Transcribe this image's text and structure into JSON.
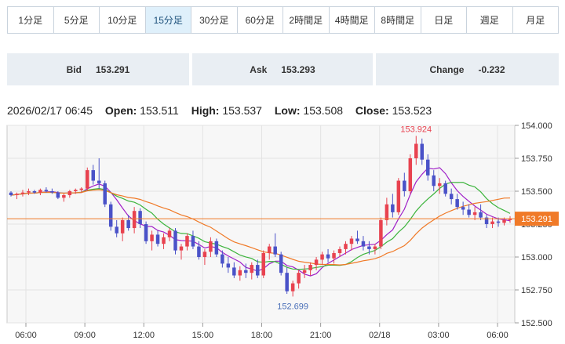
{
  "tabs": [
    {
      "label": "1分足",
      "active": false
    },
    {
      "label": "5分足",
      "active": false
    },
    {
      "label": "10分足",
      "active": false
    },
    {
      "label": "15分足",
      "active": true
    },
    {
      "label": "30分足",
      "active": false
    },
    {
      "label": "60分足",
      "active": false
    },
    {
      "label": "2時間足",
      "active": false
    },
    {
      "label": "4時間足",
      "active": false
    },
    {
      "label": "8時間足",
      "active": false
    },
    {
      "label": "日足",
      "active": false
    },
    {
      "label": "週足",
      "active": false
    },
    {
      "label": "月足",
      "active": false
    }
  ],
  "quotes": {
    "bid_label": "Bid",
    "bid_value": "153.291",
    "ask_label": "Ask",
    "ask_value": "153.293",
    "change_label": "Change",
    "change_value": "-0.232"
  },
  "ohlc": {
    "datetime": "2026/02/17 06:45",
    "open_label": "Open:",
    "open_value": "153.511",
    "high_label": "High:",
    "high_value": "153.537",
    "low_label": "Low:",
    "low_value": "153.508",
    "close_label": "Close:",
    "close_value": "153.523"
  },
  "chart_data": {
    "type": "candlestick",
    "ylim": [
      152.5,
      154.0
    ],
    "y_ticks": [
      "154.000",
      "153.750",
      "153.500",
      "153.250",
      "153.000",
      "152.750",
      "152.500"
    ],
    "x_tick_labels": [
      "06:00",
      "09:00",
      "12:00",
      "15:00",
      "18:00",
      "21:00",
      "02/18",
      "03:00",
      "06:00"
    ],
    "current_price": "153.291",
    "max_label": "153.924",
    "min_label": "152.699",
    "colors": {
      "up": "#e8424f",
      "down": "#4a52c8",
      "ma_short": "#a020c8",
      "ma_mid": "#3cb43c",
      "ma_long": "#f07a28",
      "price_line": "#f07a28",
      "grid": "#e3e3e3",
      "plot_bg": "#f7f7f7"
    },
    "candles": [
      [
        153.49,
        153.5,
        153.46,
        153.47
      ],
      [
        153.47,
        153.49,
        153.44,
        153.48
      ],
      [
        153.48,
        153.51,
        153.46,
        153.49
      ],
      [
        153.49,
        153.52,
        153.47,
        153.5
      ],
      [
        153.5,
        153.51,
        153.48,
        153.49
      ],
      [
        153.49,
        153.52,
        153.47,
        153.51
      ],
      [
        153.51,
        153.53,
        153.49,
        153.5
      ],
      [
        153.5,
        153.52,
        153.48,
        153.49
      ],
      [
        153.49,
        153.5,
        153.44,
        153.45
      ],
      [
        153.45,
        153.48,
        153.42,
        153.47
      ],
      [
        153.47,
        153.51,
        153.45,
        153.5
      ],
      [
        153.5,
        153.52,
        153.48,
        153.51
      ],
      [
        153.51,
        153.53,
        153.49,
        153.52
      ],
      [
        153.52,
        153.68,
        153.5,
        153.66
      ],
      [
        153.66,
        153.7,
        153.55,
        153.58
      ],
      [
        153.58,
        153.75,
        153.52,
        153.56
      ],
      [
        153.56,
        153.58,
        153.38,
        153.4
      ],
      [
        153.4,
        153.42,
        153.2,
        153.23
      ],
      [
        153.23,
        153.28,
        153.15,
        153.18
      ],
      [
        153.18,
        153.3,
        153.12,
        153.28
      ],
      [
        153.28,
        153.32,
        153.2,
        153.22
      ],
      [
        153.22,
        153.38,
        153.18,
        153.35
      ],
      [
        153.35,
        153.37,
        153.22,
        153.25
      ],
      [
        153.25,
        153.27,
        153.1,
        153.12
      ],
      [
        153.12,
        153.2,
        153.05,
        153.17
      ],
      [
        153.17,
        153.2,
        153.08,
        153.1
      ],
      [
        153.1,
        153.18,
        153.06,
        153.15
      ],
      [
        153.15,
        153.22,
        153.12,
        153.2
      ],
      [
        153.2,
        153.22,
        153.02,
        153.05
      ],
      [
        153.05,
        153.1,
        152.98,
        153.08
      ],
      [
        153.08,
        153.18,
        153.05,
        153.16
      ],
      [
        153.16,
        153.2,
        153.06,
        153.08
      ],
      [
        153.08,
        153.12,
        152.98,
        153.0
      ],
      [
        153.0,
        153.06,
        152.94,
        153.04
      ],
      [
        153.04,
        153.15,
        153.0,
        153.12
      ],
      [
        153.12,
        153.14,
        153.0,
        153.02
      ],
      [
        153.02,
        153.05,
        152.92,
        152.95
      ],
      [
        152.95,
        153.0,
        152.88,
        152.92
      ],
      [
        152.92,
        152.96,
        152.84,
        152.86
      ],
      [
        152.86,
        152.93,
        152.82,
        152.9
      ],
      [
        152.9,
        152.95,
        152.84,
        152.88
      ],
      [
        152.88,
        152.96,
        152.83,
        152.94
      ],
      [
        152.94,
        152.98,
        152.84,
        152.86
      ],
      [
        152.86,
        153.05,
        152.84,
        153.03
      ],
      [
        153.03,
        153.1,
        152.98,
        153.08
      ],
      [
        153.08,
        153.18,
        153.0,
        153.02
      ],
      [
        153.02,
        153.04,
        152.86,
        152.88
      ],
      [
        152.88,
        152.92,
        152.72,
        152.74
      ],
      [
        152.74,
        152.82,
        152.7,
        152.8
      ],
      [
        152.8,
        152.9,
        152.76,
        152.88
      ],
      [
        152.88,
        152.94,
        152.84,
        152.9
      ],
      [
        152.9,
        152.96,
        152.86,
        152.94
      ],
      [
        152.94,
        153.0,
        152.9,
        152.98
      ],
      [
        152.98,
        153.04,
        152.94,
        153.02
      ],
      [
        153.02,
        153.06,
        152.96,
        152.99
      ],
      [
        152.99,
        153.05,
        152.95,
        153.03
      ],
      [
        153.03,
        153.08,
        153.0,
        153.06
      ],
      [
        153.06,
        153.12,
        153.02,
        153.1
      ],
      [
        153.1,
        153.16,
        153.05,
        153.14
      ],
      [
        153.14,
        153.2,
        153.1,
        153.12
      ],
      [
        153.12,
        153.16,
        153.05,
        153.08
      ],
      [
        153.08,
        153.12,
        153.02,
        153.06
      ],
      [
        153.06,
        153.1,
        153.02,
        153.08
      ],
      [
        153.08,
        153.3,
        153.06,
        153.28
      ],
      [
        153.28,
        153.45,
        153.24,
        153.4
      ],
      [
        153.4,
        153.48,
        153.3,
        153.34
      ],
      [
        153.34,
        153.6,
        153.32,
        153.58
      ],
      [
        153.58,
        153.64,
        153.46,
        153.5
      ],
      [
        153.5,
        153.78,
        153.48,
        153.75
      ],
      [
        153.75,
        153.92,
        153.7,
        153.86
      ],
      [
        153.86,
        153.9,
        153.7,
        153.74
      ],
      [
        153.74,
        153.78,
        153.58,
        153.62
      ],
      [
        153.62,
        153.66,
        153.5,
        153.54
      ],
      [
        153.54,
        153.6,
        153.48,
        153.56
      ],
      [
        153.56,
        153.58,
        153.46,
        153.48
      ],
      [
        153.48,
        153.52,
        153.4,
        153.44
      ],
      [
        153.44,
        153.48,
        153.36,
        153.38
      ],
      [
        153.38,
        153.42,
        153.32,
        153.36
      ],
      [
        153.36,
        153.4,
        153.3,
        153.32
      ],
      [
        153.32,
        153.38,
        153.28,
        153.34
      ],
      [
        153.34,
        153.4,
        153.28,
        153.3
      ],
      [
        153.3,
        153.32,
        153.22,
        153.25
      ],
      [
        153.25,
        153.3,
        153.22,
        153.27
      ],
      [
        153.27,
        153.3,
        153.23,
        153.26
      ],
      [
        153.26,
        153.3,
        153.24,
        153.28
      ],
      [
        153.28,
        153.31,
        153.26,
        153.29
      ]
    ]
  }
}
